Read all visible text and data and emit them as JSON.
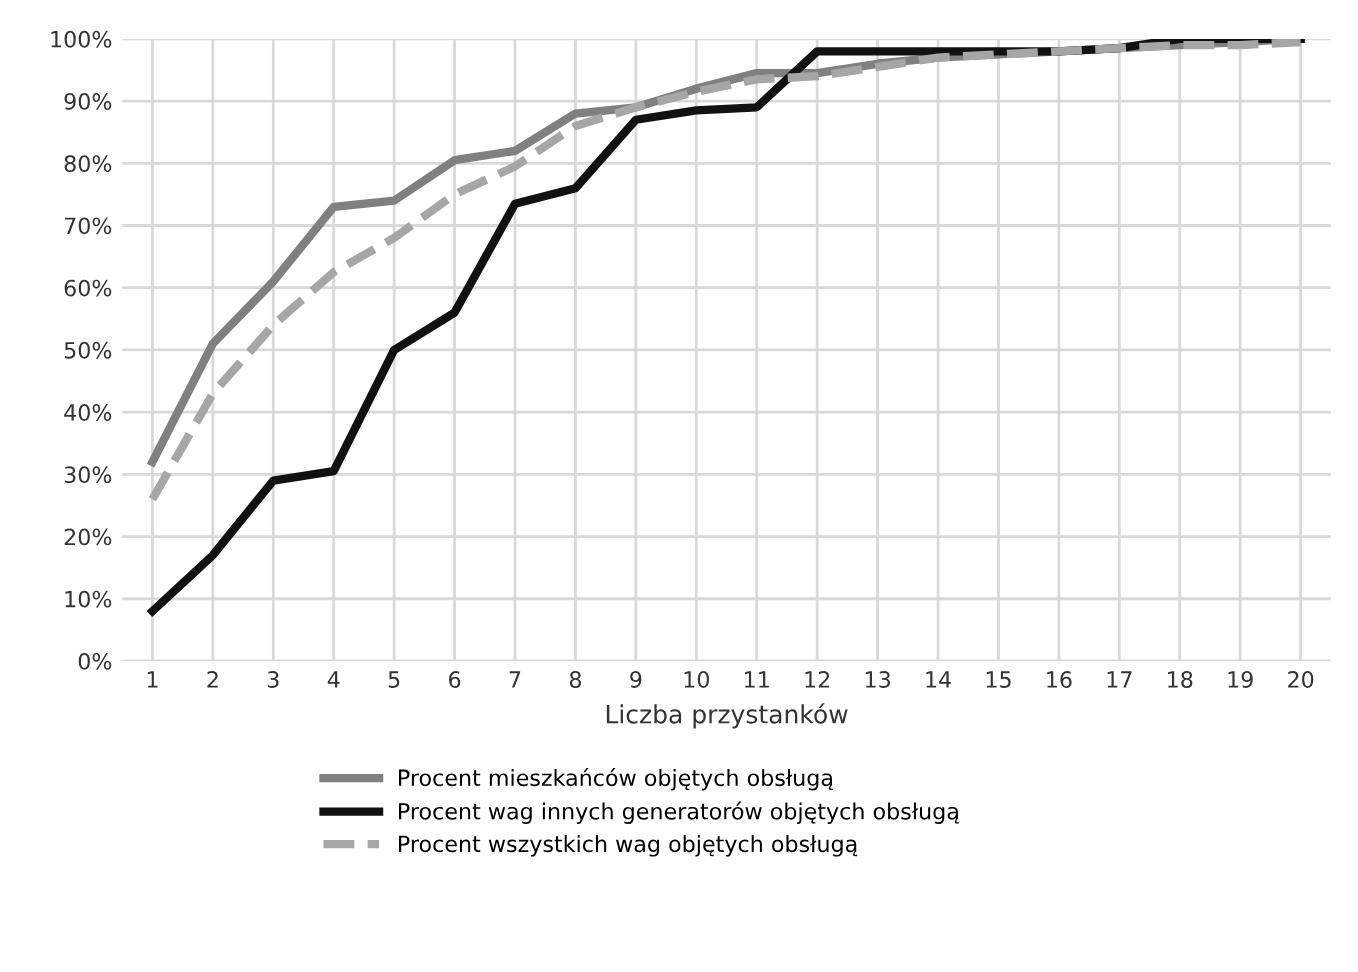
{
  "chart_data": {
    "type": "line",
    "xlabel": "Liczba przystanków",
    "categories": [
      "1",
      "2",
      "3",
      "4",
      "5",
      "6",
      "7",
      "8",
      "9",
      "10",
      "11",
      "12",
      "13",
      "14",
      "15",
      "16",
      "17",
      "18",
      "19",
      "20"
    ],
    "series": [
      {
        "name": "Procent mieszkańców objętych obsługą",
        "color": "#808080",
        "line_style": "solid",
        "values": [
          32,
          51,
          61,
          73,
          74,
          80.5,
          82,
          88,
          89,
          92,
          94.5,
          94.5,
          96,
          97,
          97.5,
          98,
          98.5,
          99,
          99.5,
          100
        ]
      },
      {
        "name": "Procent wag innych generatorów objętych obsługą",
        "color": "#111111",
        "line_style": "solid",
        "values": [
          8,
          17,
          29,
          30.5,
          50,
          56,
          73.5,
          76,
          87,
          88.5,
          89,
          98,
          98,
          98,
          98,
          98,
          98.5,
          100,
          100,
          100
        ]
      },
      {
        "name": "Procent wszystkich wag objętych obsługą",
        "color": "#a6a6a6",
        "line_style": "dashed",
        "values": [
          26,
          43,
          54,
          62.5,
          68,
          75,
          79.5,
          86,
          89,
          91.5,
          93.5,
          94,
          95.5,
          97,
          97.5,
          98,
          98.5,
          99,
          99,
          99.5
        ]
      }
    ],
    "ylim": [
      0,
      100
    ],
    "yticks": [
      {
        "value": 0,
        "label": "0%"
      },
      {
        "value": 10,
        "label": "10%"
      },
      {
        "value": 20,
        "label": "20%"
      },
      {
        "value": 30,
        "label": "30%"
      },
      {
        "value": 40,
        "label": "40%"
      },
      {
        "value": 50,
        "label": "50%"
      },
      {
        "value": 60,
        "label": "60%"
      },
      {
        "value": 70,
        "label": "70%"
      },
      {
        "value": 80,
        "label": "80%"
      },
      {
        "value": 90,
        "label": "90%"
      },
      {
        "value": 100,
        "label": "100%"
      }
    ],
    "grid": true,
    "legend": "bottom",
    "marker": "none"
  }
}
